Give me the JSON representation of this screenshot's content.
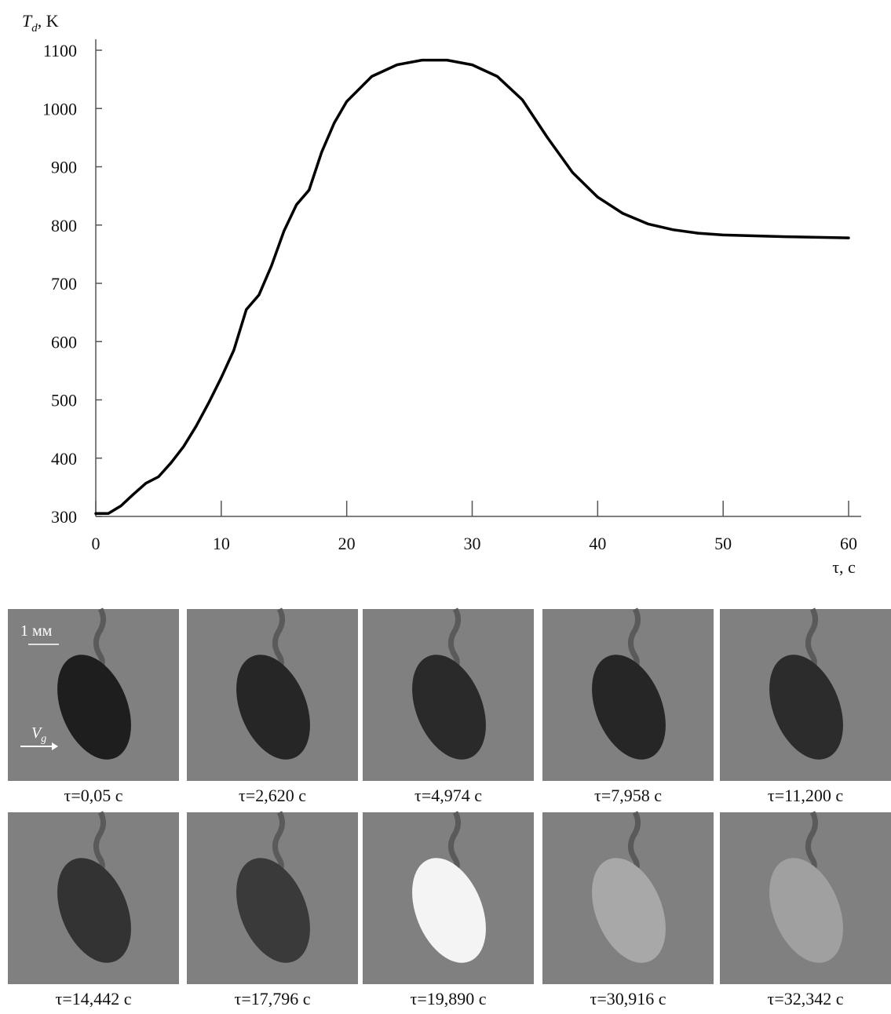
{
  "chart_data": {
    "type": "line",
    "ylabel": {
      "symbol": "T",
      "subscript": "d",
      "unit": ", K"
    },
    "xlabel": "τ, c",
    "x": [
      0,
      1,
      2,
      3,
      4,
      5,
      6,
      7,
      8,
      9,
      10,
      11,
      12,
      13,
      14,
      15,
      16,
      17,
      18,
      19,
      20,
      22,
      24,
      26,
      28,
      30,
      32,
      34,
      36,
      38,
      40,
      42,
      44,
      46,
      48,
      50,
      55,
      60
    ],
    "values": [
      305,
      305,
      318,
      338,
      357,
      368,
      392,
      420,
      455,
      495,
      538,
      585,
      655,
      680,
      730,
      790,
      835,
      860,
      925,
      975,
      1012,
      1055,
      1075,
      1083,
      1083,
      1075,
      1055,
      1015,
      950,
      890,
      848,
      820,
      802,
      792,
      786,
      783,
      780,
      778
    ],
    "color": "#000000",
    "xlim": [
      0,
      60
    ],
    "ylim": [
      300,
      1100
    ],
    "xticks": [
      0,
      10,
      20,
      30,
      40,
      50,
      60
    ],
    "yticks": [
      300,
      400,
      500,
      600,
      700,
      800,
      900,
      1000,
      1100
    ]
  },
  "frames": {
    "scale_label": "1 мм",
    "velocity_label": {
      "symbol": "V",
      "subscript": "g"
    },
    "captions": [
      "τ=0,05 c",
      "τ=2,620 c",
      "τ=4,974 c",
      "τ=7,958 c",
      "τ=11,200 c",
      "τ=14,442 c",
      "τ=17,796 c",
      "τ=19,890 c",
      "τ=30,916 c",
      "τ=32,342 c"
    ]
  }
}
